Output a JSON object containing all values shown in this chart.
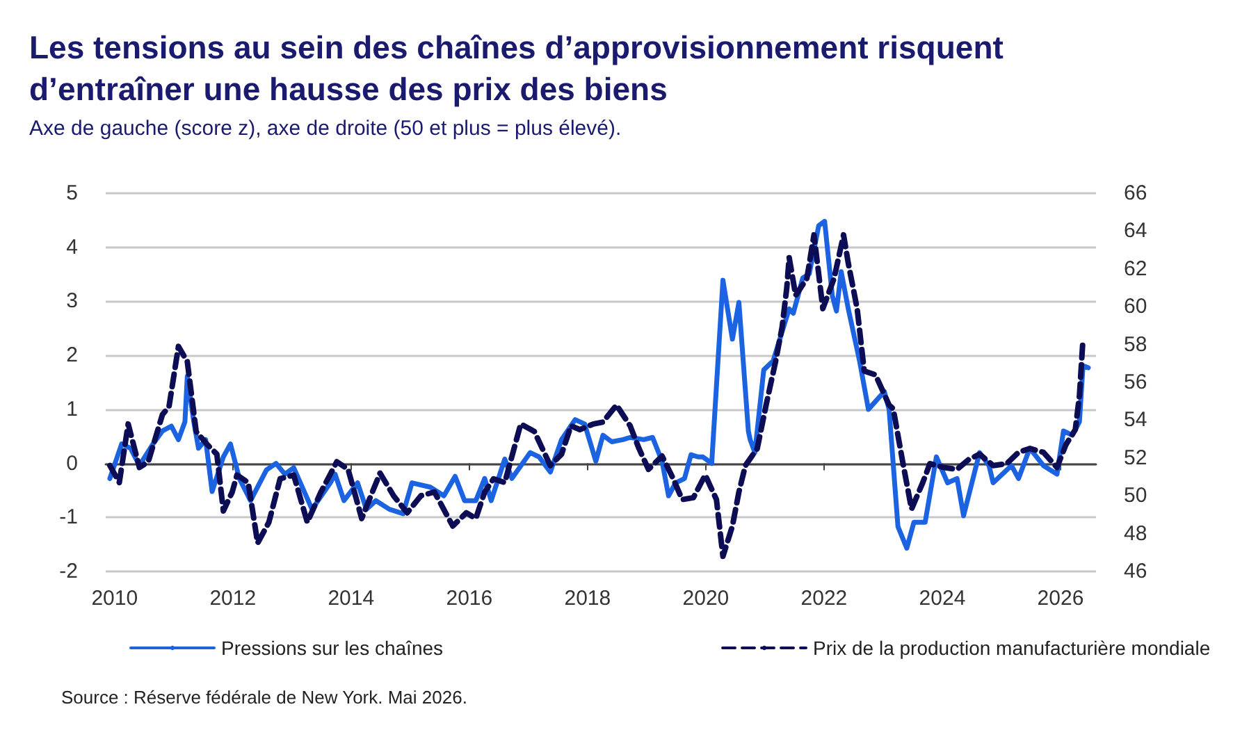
{
  "chart_data": {
    "type": "line",
    "title": "Les tensions au sein des chaînes d’approvisionnement risquent d’entraîner une hausse des prix des biens",
    "subtitle": "Axe de gauche (score z), axe de droite (50 et plus = plus élevé).",
    "annotations": [
      "Source : Réserve fédérale de New York. Mai 2026."
    ],
    "xlim": [
      2009.85,
      2026.6
    ],
    "xticks": [
      2010,
      2012,
      2014,
      2016,
      2018,
      2020,
      2022,
      2024,
      2026
    ],
    "ylim": [
      -2,
      5
    ],
    "yticks": [
      -2,
      -1,
      0,
      1,
      2,
      3,
      4,
      5
    ],
    "y2lim": [
      46,
      66
    ],
    "y2ticks": [
      46,
      48,
      50,
      52,
      54,
      56,
      58,
      60,
      62,
      64,
      66
    ],
    "grid": "y",
    "legend": "bottom",
    "marker": "none",
    "series": [
      {
        "name": "Pressions sur les chaînes",
        "color": "#1b63e0",
        "line_style": "solid",
        "x": [
          2009.92,
          2010.12,
          2010.27,
          2010.42,
          2010.65,
          2010.81,
          2010.96,
          2011.08,
          2011.19,
          2011.23,
          2011.34,
          2011.42,
          2011.54,
          2011.65,
          2011.84,
          2011.96,
          2012.11,
          2012.3,
          2012.57,
          2012.73,
          2012.88,
          2013.03,
          2013.34,
          2013.65,
          2013.73,
          2013.88,
          2014.11,
          2014.26,
          2014.42,
          2014.65,
          2014.88,
          2015.03,
          2015.34,
          2015.57,
          2015.76,
          2015.92,
          2016.11,
          2016.26,
          2016.37,
          2016.6,
          2016.72,
          2017.03,
          2017.18,
          2017.37,
          2017.56,
          2017.79,
          2017.95,
          2018.14,
          2018.26,
          2018.41,
          2018.6,
          2018.72,
          2018.95,
          2019.1,
          2019.26,
          2019.37,
          2019.49,
          2019.64,
          2019.75,
          2019.87,
          2019.95,
          2020.1,
          2020.29,
          2020.45,
          2020.56,
          2020.72,
          2020.75,
          2020.83,
          2020.98,
          2021.14,
          2021.41,
          2021.48,
          2021.64,
          2021.75,
          2021.91,
          2022.01,
          2022.14,
          2022.21,
          2022.29,
          2022.41,
          2022.6,
          2022.75,
          2023.02,
          2023.1,
          2023.25,
          2023.4,
          2023.52,
          2023.71,
          2023.9,
          2024.09,
          2024.25,
          2024.36,
          2024.63,
          2024.79,
          2024.86,
          2025.17,
          2025.29,
          2025.48,
          2025.71,
          2025.94,
          2026.05,
          2026.2,
          2026.32,
          2026.38,
          2026.47
        ],
        "values": [
          -0.28,
          0.36,
          0.28,
          -0.04,
          0.36,
          0.6,
          0.69,
          0.44,
          0.77,
          1.61,
          0.77,
          0.28,
          0.44,
          -0.52,
          0.12,
          0.36,
          -0.28,
          -0.69,
          -0.12,
          0,
          -0.2,
          -0.08,
          -0.85,
          -0.36,
          -0.2,
          -0.69,
          -0.36,
          -0.85,
          -0.69,
          -0.85,
          -0.93,
          -0.36,
          -0.44,
          -0.6,
          -0.24,
          -0.69,
          -0.69,
          -0.28,
          -0.69,
          0.08,
          -0.28,
          0.2,
          0.12,
          -0.16,
          0.44,
          0.81,
          0.73,
          0.04,
          0.52,
          0.4,
          0.44,
          0.48,
          0.44,
          0.48,
          0.04,
          -0.6,
          -0.36,
          -0.28,
          0.16,
          0.12,
          0.12,
          0,
          3.39,
          2.3,
          2.98,
          0.6,
          0.44,
          0.2,
          1.73,
          1.9,
          2.86,
          2.78,
          3.43,
          3.51,
          4.4,
          4.48,
          3.1,
          2.82,
          3.55,
          2.86,
          1.9,
          1.0,
          1.33,
          1.0,
          -1.17,
          -1.57,
          -1.09,
          -1.09,
          0.12,
          -0.36,
          -0.28,
          -0.97,
          0.2,
          -0.04,
          -0.36,
          -0.04,
          -0.28,
          0.28,
          -0.04,
          -0.2,
          0.6,
          0.52,
          0.77,
          1.81,
          1.77
        ]
      },
      {
        "name": "Prix de la production manufacturière mondiale",
        "color": "#0d0d55",
        "line_style": "dashed",
        "axis": "y2",
        "x": [
          2009.92,
          2010.08,
          2010.23,
          2010.42,
          2010.57,
          2010.81,
          2010.92,
          2011.08,
          2011.23,
          2011.38,
          2011.57,
          2011.73,
          2011.84,
          2011.99,
          2012.07,
          2012.26,
          2012.42,
          2012.61,
          2012.8,
          2013.03,
          2013.26,
          2013.49,
          2013.76,
          2013.95,
          2014.18,
          2014.49,
          2014.72,
          2014.95,
          2015.18,
          2015.41,
          2015.72,
          2015.95,
          2016.11,
          2016.26,
          2016.41,
          2016.6,
          2016.87,
          2017.1,
          2017.37,
          2017.56,
          2017.72,
          2017.87,
          2018.1,
          2018.26,
          2018.49,
          2018.72,
          2018.87,
          2019.03,
          2019.26,
          2019.45,
          2019.6,
          2019.79,
          2019.99,
          2020.18,
          2020.29,
          2020.45,
          2020.56,
          2020.67,
          2020.87,
          2021.02,
          2021.18,
          2021.29,
          2021.37,
          2021.41,
          2021.52,
          2021.71,
          2021.83,
          2021.98,
          2022.17,
          2022.33,
          2022.41,
          2022.56,
          2022.68,
          2022.87,
          2023.1,
          2023.17,
          2023.33,
          2023.48,
          2023.67,
          2023.79,
          2024.02,
          2024.25,
          2024.44,
          2024.63,
          2024.86,
          2025.09,
          2025.29,
          2025.48,
          2025.71,
          2025.94,
          2026.09,
          2026.25,
          2026.32,
          2026.38
        ],
        "values": [
          51.6,
          50.7,
          53.8,
          51.5,
          51.8,
          54.3,
          54.7,
          57.9,
          57.1,
          53.4,
          52.7,
          52.2,
          49.2,
          50.2,
          51.1,
          50.7,
          47.5,
          48.6,
          50.9,
          51.1,
          48.6,
          50.2,
          51.8,
          51.4,
          48.8,
          51.2,
          50.0,
          49.1,
          50.0,
          50.2,
          48.4,
          49.1,
          48.8,
          50.2,
          50.9,
          50.7,
          53.8,
          53.4,
          51.6,
          52.2,
          53.7,
          53.5,
          53.8,
          53.9,
          54.8,
          53.7,
          52.5,
          51.4,
          52.1,
          50.9,
          49.8,
          49.9,
          51.1,
          49.8,
          46.8,
          48.4,
          50.2,
          51.6,
          52.5,
          54.8,
          57.1,
          58.9,
          61.0,
          62.6,
          60.6,
          61.5,
          63.8,
          59.9,
          61.5,
          63.8,
          62.3,
          59.9,
          56.6,
          56.4,
          54.8,
          54.6,
          51.8,
          49.3,
          50.7,
          51.7,
          51.5,
          51.4,
          51.9,
          52.2,
          51.6,
          51.7,
          52.3,
          52.5,
          52.3,
          51.5,
          52.7,
          53.5,
          55.3,
          58.3
        ]
      }
    ]
  }
}
